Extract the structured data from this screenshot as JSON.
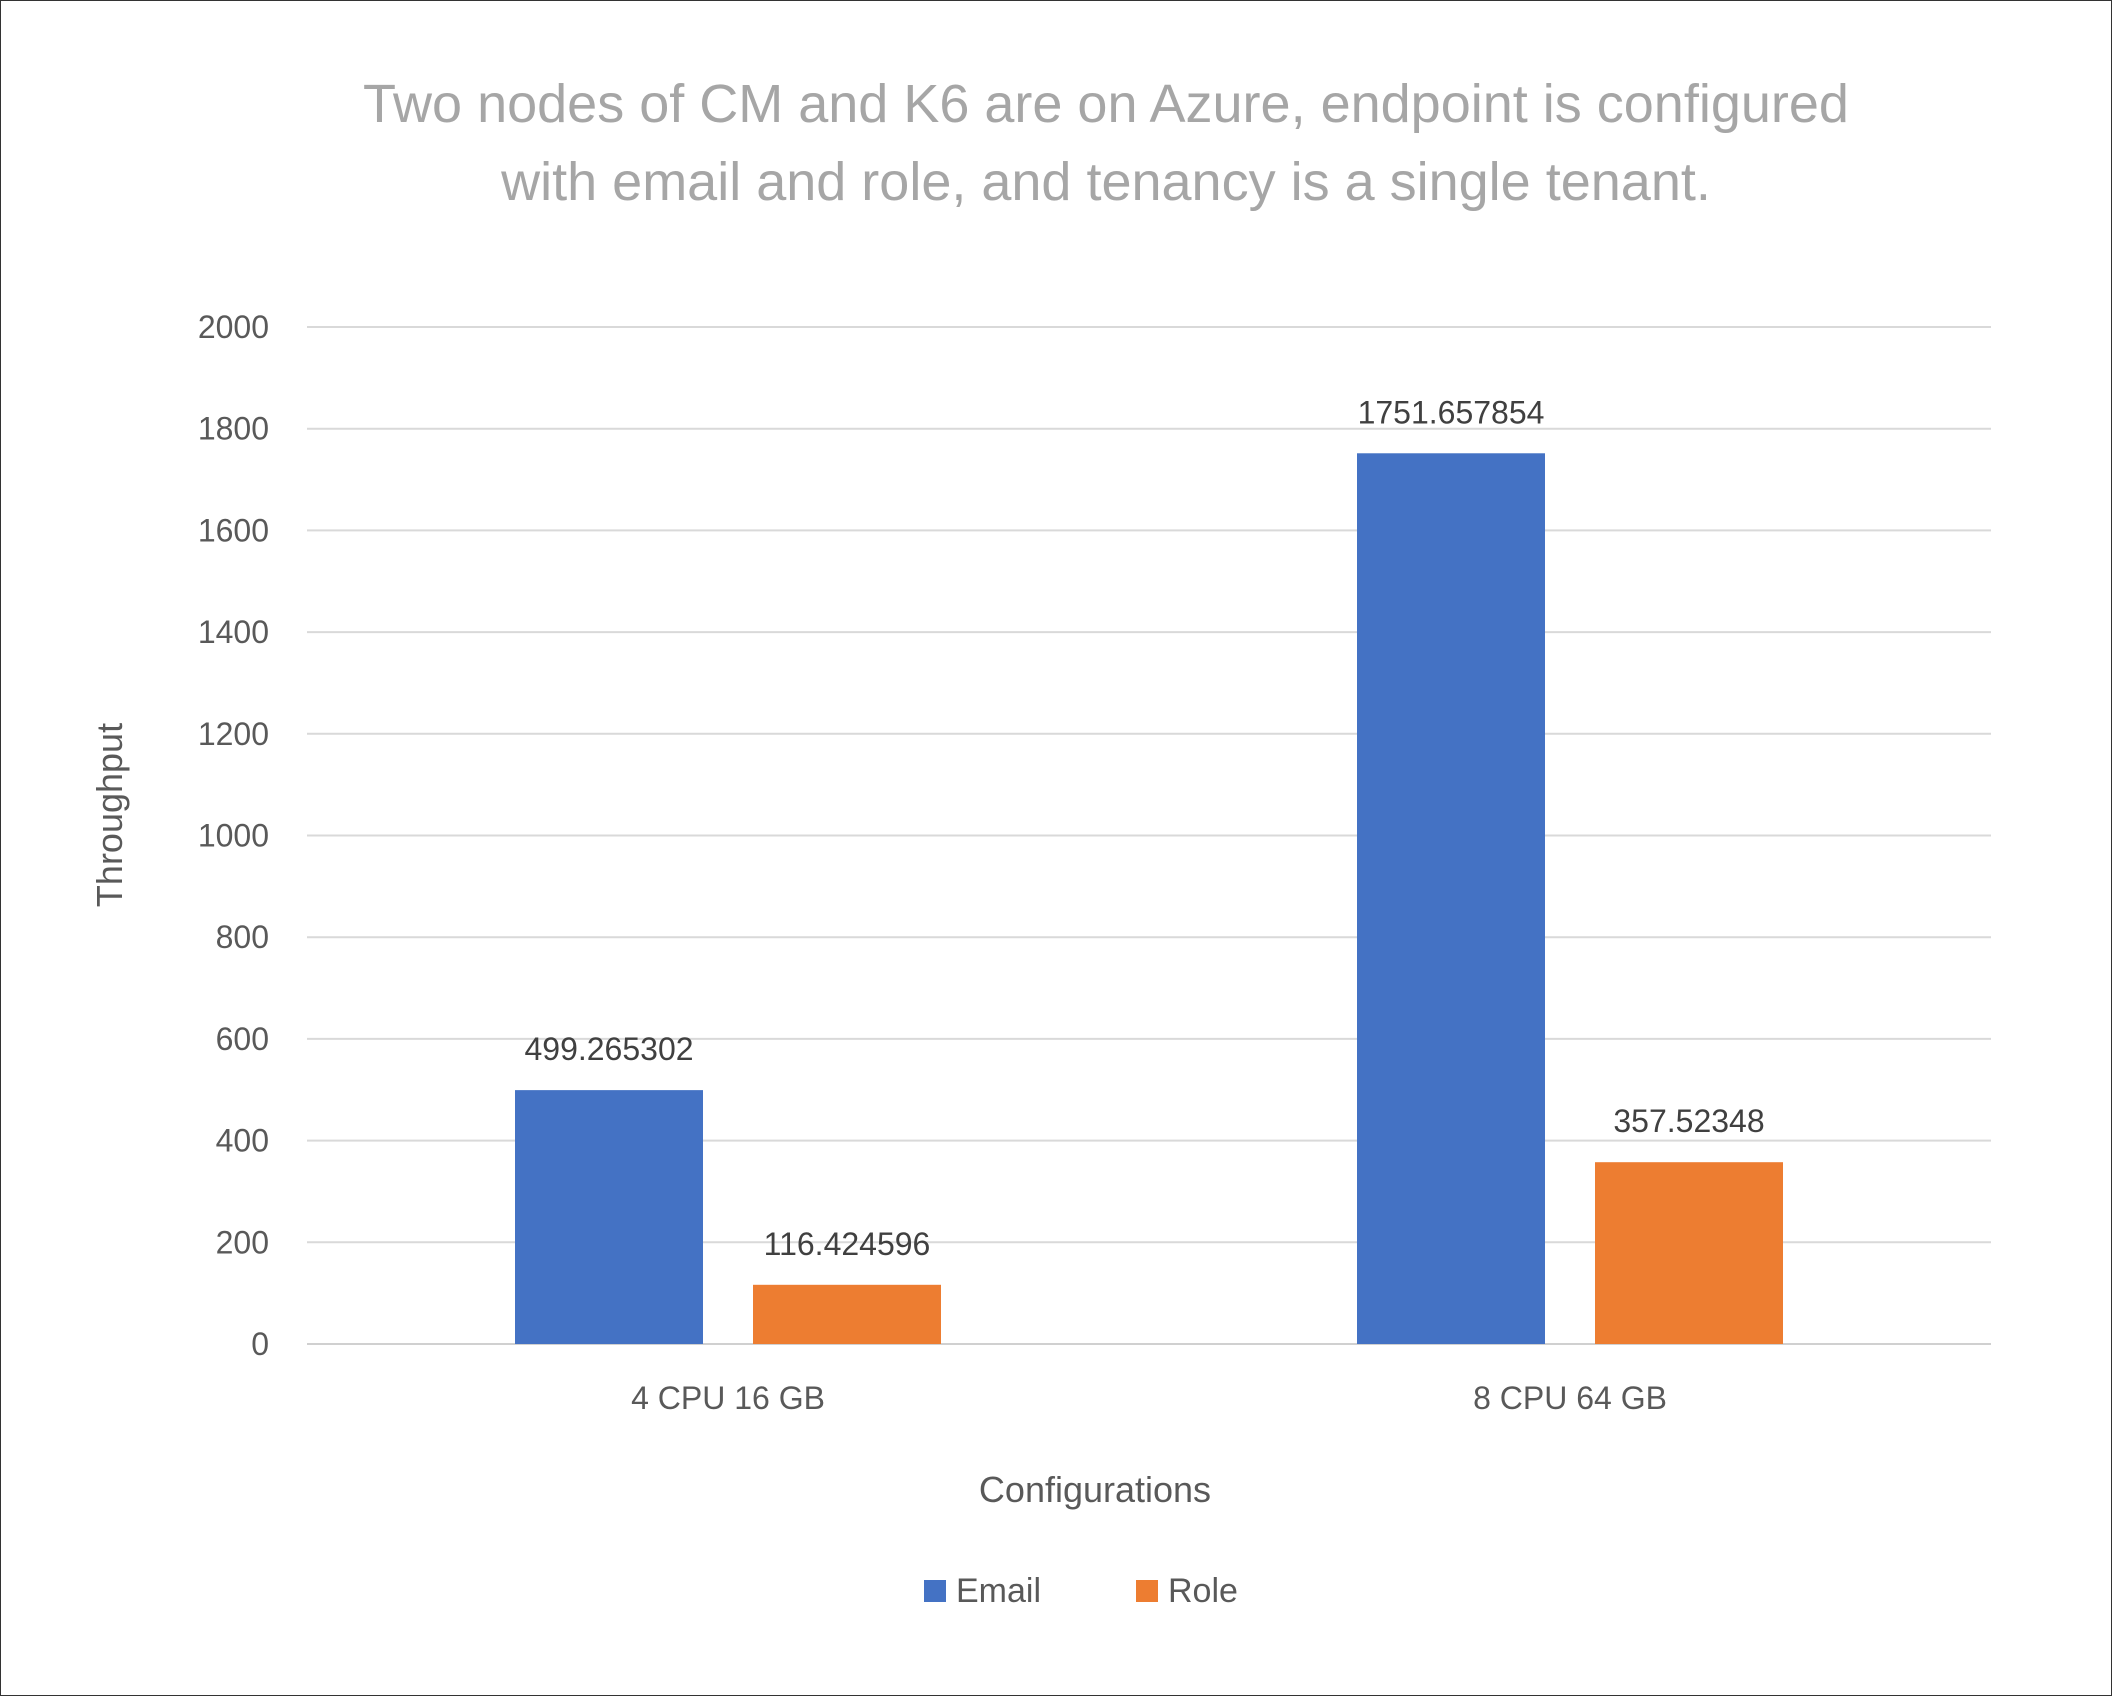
{
  "chart_data": {
    "type": "bar",
    "title": [
      "Two nodes of CM and K6 are on Azure, endpoint is configured",
      "with email and role, and tenancy is a single tenant."
    ],
    "xlabel": "Configurations",
    "ylabel": "Throughput",
    "categories": [
      "4 CPU 16 GB",
      "8 CPU 64 GB"
    ],
    "series": [
      {
        "name": "Email",
        "color": "#4472C4",
        "values": [
          499.265302,
          1751.657854
        ],
        "labels": [
          "499.265302",
          "1751.657854"
        ]
      },
      {
        "name": "Role",
        "color": "#ED7D31",
        "values": [
          116.424596,
          357.52348
        ],
        "labels": [
          "116.424596",
          "357.52348"
        ]
      }
    ],
    "ylim": [
      0,
      2000
    ],
    "yticks": [
      0,
      200,
      400,
      600,
      800,
      1000,
      1200,
      1400,
      1600,
      1800,
      2000
    ],
    "grid": true,
    "legend": "bottom"
  }
}
